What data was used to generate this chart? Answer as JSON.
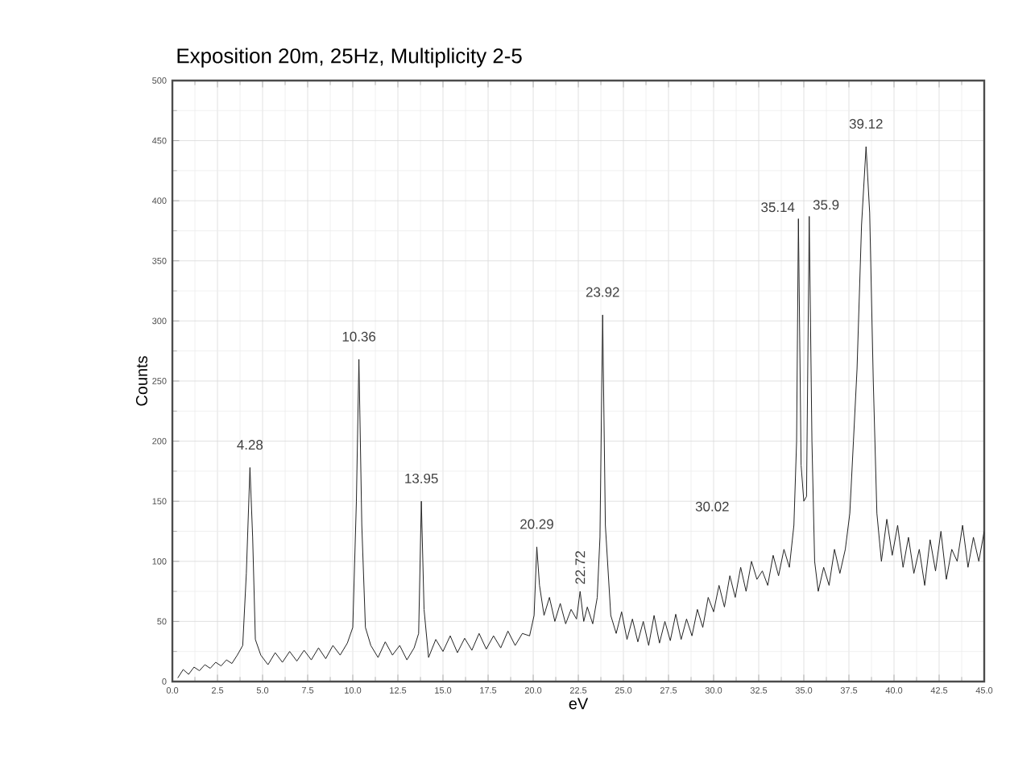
{
  "chart_data": {
    "type": "line",
    "title": "Exposition 20m, 25Hz, Multiplicity 2-5",
    "xlabel": "eV",
    "ylabel": "Counts",
    "xlim": [
      0,
      45
    ],
    "ylim": [
      0,
      500
    ],
    "xticks": [
      {
        "value": 0,
        "label": "0.0"
      },
      2.5,
      {
        "value": 5,
        "label": "5.0"
      },
      7.5,
      {
        "value": 10,
        "label": "10.0"
      },
      12.5,
      {
        "value": 15,
        "label": "15.0"
      },
      17.5,
      {
        "value": 20,
        "label": "20.0"
      },
      22.5,
      {
        "value": 25,
        "label": "25.0"
      },
      27.5,
      {
        "value": 30,
        "label": "30.0"
      },
      32.5,
      {
        "value": 35,
        "label": "35.0"
      },
      37.5,
      {
        "value": 40,
        "label": "40.0"
      },
      42.5,
      {
        "value": 45,
        "label": "45.0"
      }
    ],
    "yticks": [
      0,
      50,
      100,
      150,
      200,
      250,
      300,
      350,
      400,
      450,
      500
    ],
    "grid": true,
    "series": [
      {
        "color": "#222222",
        "x": [
          0.3,
          0.6,
          0.9,
          1.2,
          1.5,
          1.8,
          2.1,
          2.4,
          2.7,
          3.0,
          3.3,
          3.6,
          3.9,
          4.1,
          4.3,
          4.45,
          4.6,
          4.9,
          5.3,
          5.7,
          6.1,
          6.5,
          6.9,
          7.3,
          7.7,
          8.1,
          8.5,
          8.9,
          9.3,
          9.7,
          10.0,
          10.2,
          10.34,
          10.5,
          10.7,
          11.0,
          11.4,
          11.8,
          12.2,
          12.6,
          13.0,
          13.4,
          13.65,
          13.8,
          13.95,
          14.2,
          14.6,
          15.0,
          15.4,
          15.8,
          16.2,
          16.6,
          17.0,
          17.4,
          17.8,
          18.2,
          18.6,
          19.0,
          19.4,
          19.8,
          20.05,
          20.2,
          20.35,
          20.6,
          20.9,
          21.2,
          21.5,
          21.8,
          22.1,
          22.4,
          22.6,
          22.8,
          23.0,
          23.3,
          23.55,
          23.7,
          23.85,
          24.0,
          24.3,
          24.6,
          24.9,
          25.2,
          25.5,
          25.8,
          26.1,
          26.4,
          26.7,
          27.0,
          27.3,
          27.6,
          27.9,
          28.2,
          28.5,
          28.8,
          29.1,
          29.4,
          29.7,
          30.0,
          30.3,
          30.6,
          30.9,
          31.2,
          31.5,
          31.8,
          32.1,
          32.4,
          32.7,
          33.0,
          33.3,
          33.6,
          33.9,
          34.2,
          34.45,
          34.6,
          34.7,
          34.85,
          35.0,
          35.15,
          35.3,
          35.45,
          35.6,
          35.8,
          36.1,
          36.4,
          36.7,
          37.0,
          37.3,
          37.55,
          37.75,
          37.95,
          38.2,
          38.45,
          38.65,
          38.85,
          39.05,
          39.3,
          39.6,
          39.9,
          40.2,
          40.5,
          40.8,
          41.1,
          41.4,
          41.7,
          42.0,
          42.3,
          42.6,
          42.9,
          43.2,
          43.5,
          43.8,
          44.1,
          44.4,
          44.7,
          45.0
        ],
        "values": [
          3,
          10,
          6,
          12,
          9,
          14,
          11,
          16,
          13,
          18,
          15,
          22,
          30,
          90,
          178,
          120,
          35,
          22,
          14,
          24,
          16,
          25,
          17,
          26,
          18,
          28,
          19,
          30,
          22,
          32,
          45,
          150,
          268,
          130,
          45,
          30,
          20,
          33,
          22,
          30,
          18,
          28,
          40,
          150,
          60,
          20,
          35,
          25,
          38,
          24,
          36,
          26,
          40,
          27,
          38,
          28,
          42,
          30,
          40,
          38,
          55,
          112,
          80,
          55,
          70,
          50,
          65,
          48,
          60,
          52,
          75,
          50,
          62,
          48,
          70,
          120,
          305,
          130,
          55,
          40,
          58,
          35,
          52,
          33,
          50,
          30,
          55,
          32,
          50,
          34,
          56,
          35,
          52,
          38,
          60,
          45,
          70,
          58,
          80,
          62,
          88,
          70,
          95,
          75,
          100,
          85,
          92,
          80,
          105,
          88,
          110,
          95,
          130,
          200,
          385,
          180,
          150,
          154,
          387,
          200,
          100,
          75,
          95,
          80,
          110,
          90,
          110,
          140,
          200,
          260,
          380,
          445,
          390,
          250,
          140,
          100,
          135,
          105,
          130,
          95,
          120,
          90,
          110,
          80,
          118,
          92,
          125,
          85,
          110,
          100,
          130,
          95,
          120,
          100,
          125
        ]
      }
    ],
    "annotations": [
      {
        "text": "4.28",
        "x": 4.3,
        "y": 178
      },
      {
        "text": "10.36",
        "x": 10.34,
        "y": 268
      },
      {
        "text": "13.95",
        "x": 13.8,
        "y": 150
      },
      {
        "text": "20.29",
        "x": 20.2,
        "y": 112
      },
      {
        "text": "22.72",
        "x": 22.6,
        "y": 75
      },
      {
        "text": "23.92",
        "x": 23.85,
        "y": 305
      },
      "30.02",
      {
        "text": "35.14",
        "x": 34.7,
        "y": 385
      },
      {
        "text": "35.9",
        "x": 35.3,
        "y": 387
      },
      {
        "text": "39.12",
        "x": 38.45,
        "y": 445
      }
    ]
  }
}
